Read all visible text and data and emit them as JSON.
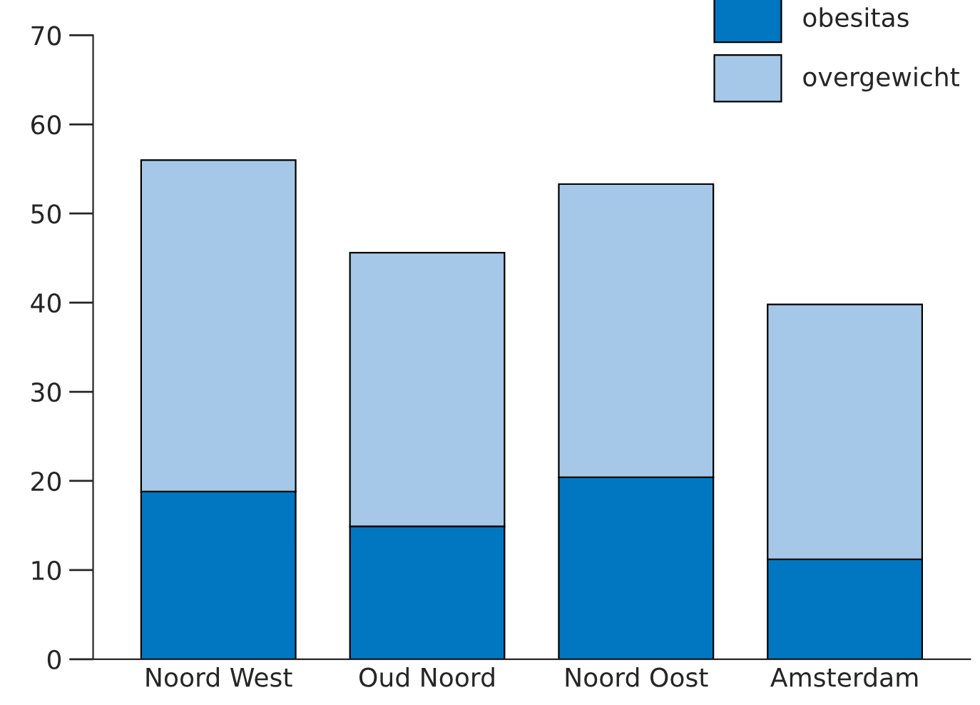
{
  "chart_data": {
    "type": "bar",
    "stacked": true,
    "categories": [
      "Noord West",
      "Oud Noord",
      "Noord Oost",
      "Amsterdam"
    ],
    "series": [
      {
        "name": "obesitas",
        "color": "#0077c0",
        "values": [
          18.8,
          14.9,
          20.4,
          11.2
        ]
      },
      {
        "name": "overgewicht",
        "color": "#a6c8e8",
        "values": [
          37.2,
          30.7,
          32.9,
          28.6
        ]
      }
    ],
    "ylim": [
      0,
      70
    ],
    "yticks": [
      0,
      10,
      20,
      30,
      40,
      50,
      60,
      70
    ],
    "grid": false,
    "legend": "top right"
  }
}
